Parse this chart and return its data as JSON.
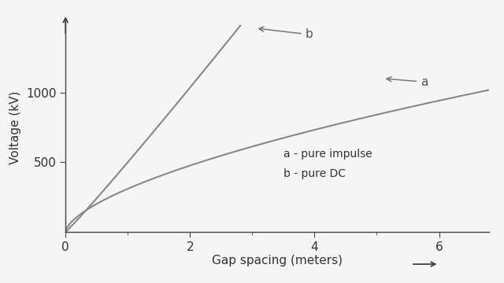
{
  "xlabel": "Gap spacing (meters)",
  "ylabel": "Voltage (kV)",
  "background_color": "#f5f5f5",
  "curve_color": "#888888",
  "xlim": [
    0,
    6.8
  ],
  "ylim": [
    0,
    1500
  ],
  "xticks": [
    0,
    2,
    4,
    6
  ],
  "yticks": [
    500,
    1000
  ],
  "legend_text_a": "a - pure impulse",
  "legend_text_b": "b - pure DC",
  "label_a": "a",
  "label_b": "b",
  "figsize": [
    6.4,
    3.6
  ],
  "dpi": 100,
  "a_coeff": 310,
  "a_exp": 0.62,
  "b_coeff": 500,
  "b_exp": 1.05
}
